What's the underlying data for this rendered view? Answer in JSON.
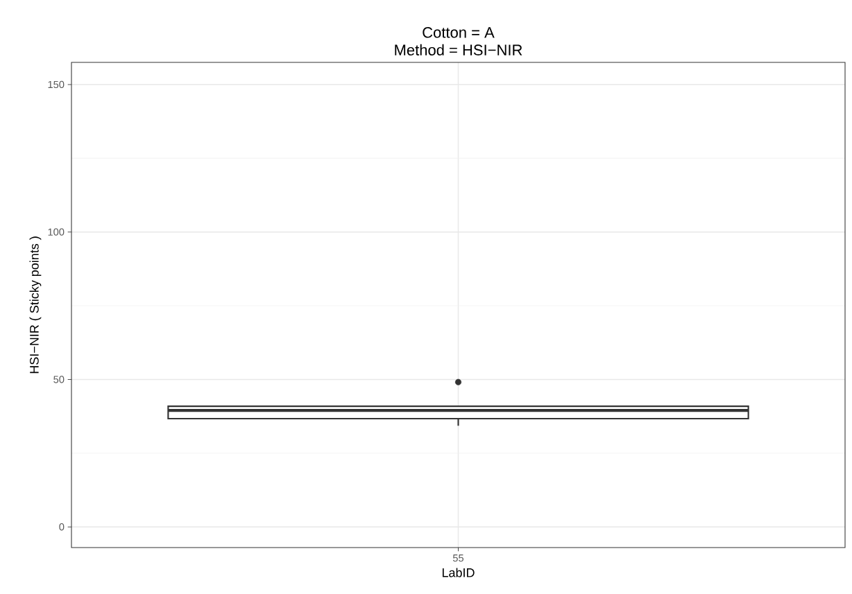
{
  "chart_data": {
    "type": "box",
    "title": "Cotton = A",
    "subtitle": "Method =  HSI−NIR",
    "xlabel": "LabID",
    "ylabel": "HSI−NIR  ( Sticky points )",
    "categories": [
      "55"
    ],
    "series": [
      {
        "color": "#333333",
        "boxes": [
          {
            "low": 34.3,
            "q1": 36.7,
            "median": 39.5,
            "q3": 40.9,
            "high": 40.9,
            "outliers": [
              49.1
            ]
          }
        ]
      }
    ],
    "ylim": [
      -7,
      157.5
    ],
    "yticks": [
      0,
      50,
      100,
      150
    ],
    "grid": true
  }
}
